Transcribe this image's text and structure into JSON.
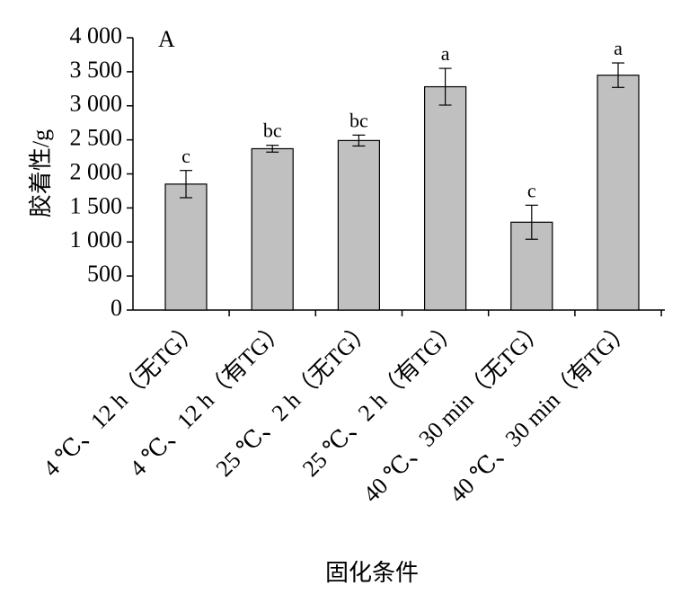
{
  "chart_data": {
    "type": "bar",
    "panel_label": "A",
    "ylabel": "胶着性/g",
    "xlabel": "固化条件",
    "categories": [
      "4 ℃、12 h（无TG）",
      "4 ℃、12 h（有TG）",
      "25 ℃、2 h（无TG）",
      "25 ℃、2 h（有TG）",
      "40 ℃、30 min（无TG）",
      "40 ℃、30 min（有TG）"
    ],
    "values": [
      1850,
      2370,
      2490,
      3280,
      1290,
      3450
    ],
    "errors": [
      200,
      50,
      80,
      270,
      250,
      180
    ],
    "significance": [
      "c",
      "bc",
      "bc",
      "a",
      "c",
      "a"
    ],
    "color": "#c0c0c0",
    "ylim": [
      0,
      4000
    ],
    "yticks": [
      0,
      500,
      {
        "value": 1000,
        "label": "1 000"
      },
      {
        "value": 1500,
        "label": "1 500"
      },
      {
        "value": 2000,
        "label": "2 000"
      },
      {
        "value": 2500,
        "label": "2 500"
      },
      {
        "value": 3000,
        "label": "3 000"
      },
      {
        "value": 3500,
        "label": "3 500"
      },
      {
        "value": 4000,
        "label": "4 000"
      }
    ]
  }
}
